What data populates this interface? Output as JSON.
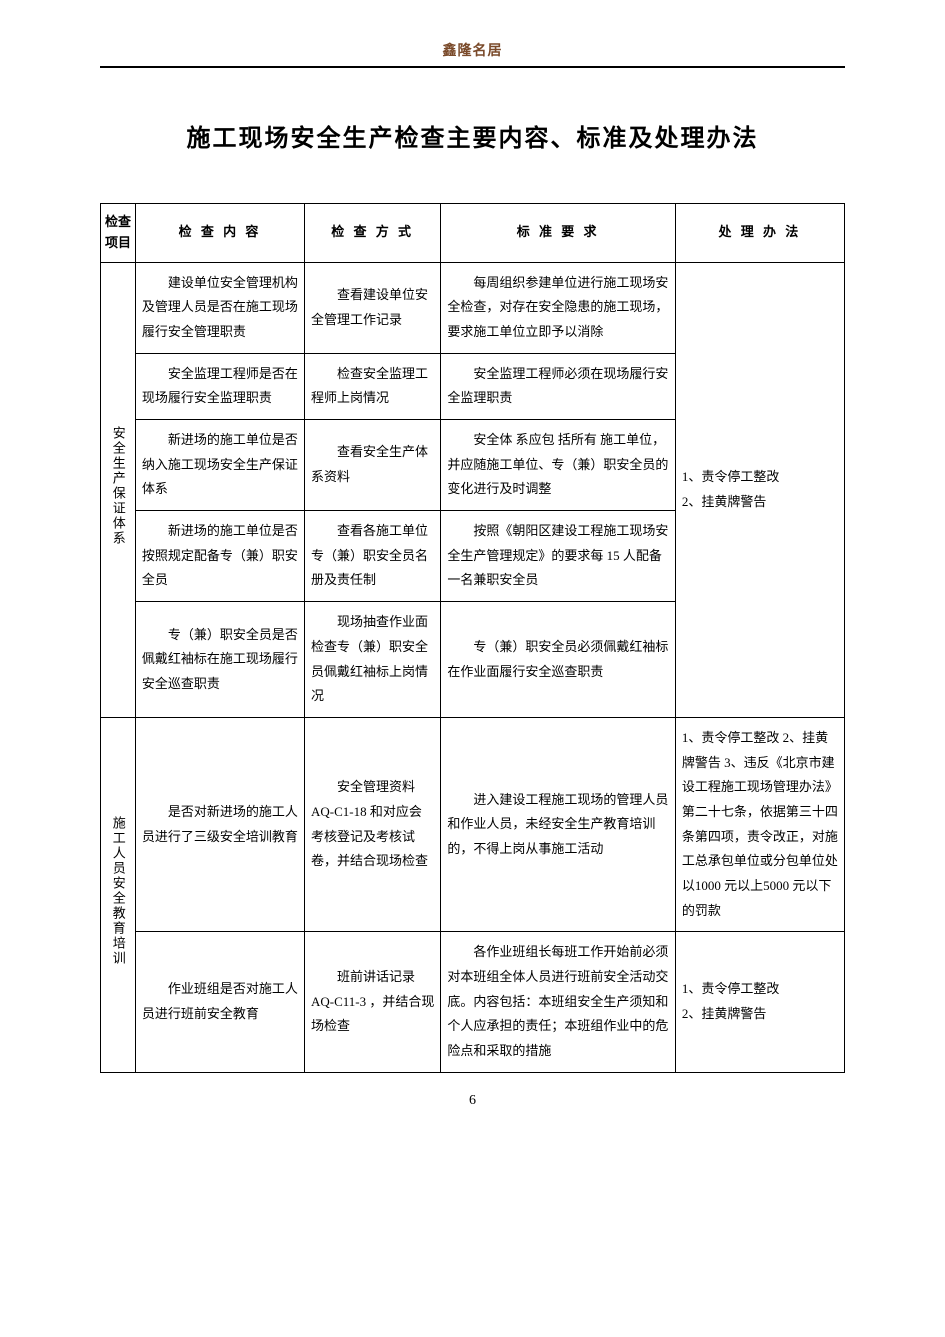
{
  "document": {
    "header_text": "鑫隆名居",
    "title": "施工现场安全生产检查主要内容、标准及处理办法",
    "page_number": "6",
    "text_color": "#000000",
    "header_color": "#7a4a2a",
    "background_color": "#ffffff",
    "border_color": "#000000",
    "font_family": "SimSun",
    "title_fontsize": 24,
    "body_fontsize": 13,
    "header_fontsize": 14
  },
  "table": {
    "headers": {
      "category": "检查项目",
      "content": "检 查 内 容",
      "method": "检 查 方 式",
      "standard": "标 准 要 求",
      "handling": "处 理 办 法"
    },
    "column_widths": {
      "category": 32,
      "content": 155,
      "method": 125,
      "standard": 215,
      "handling": 155
    },
    "sections": [
      {
        "category_label": "安全生产保证体系",
        "rowspan": 5,
        "handling": "1、责令停工整改\n2、挂黄牌警告",
        "handling_rowspan": 5,
        "rows": [
          {
            "content": "　　建设单位安全管理机构及管理人员是否在施工现场履行安全管理职责",
            "method": "　　查看建设单位安全管理工作记录",
            "standard": "　　每周组织参建单位进行施工现场安全检查，对存在安全隐患的施工现场，要求施工单位立即予以消除"
          },
          {
            "content": "　　安全监理工程师是否在现场履行安全监理职责",
            "method": "　　检查安全监理工程师上岗情况",
            "standard": "　　安全监理工程师必须在现场履行安全监理职责"
          },
          {
            "content": "　　新进场的施工单位是否纳入施工现场安全生产保证体系",
            "method": "　　查看安全生产体系资料",
            "standard": "　　安全体 系应包 括所有 施工单位，并应随施工单位、专（兼）职安全员的变化进行及时调整"
          },
          {
            "content": "　　新进场的施工单位是否按照规定配备专（兼）职安全员",
            "method": "　　查看各施工单位专（兼）职安全员名册及责任制",
            "standard": "　　按照《朝阳区建设工程施工现场安全生产管理规定》的要求每 15 人配备一名兼职安全员"
          },
          {
            "content": "　　专（兼）职安全员是否佩戴红袖标在施工现场履行安全巡查职责",
            "method": "　　现场抽查作业面检查专（兼）职安全员佩戴红袖标上岗情况",
            "standard": "　　专（兼）职安全员必须佩戴红袖标在作业面履行安全巡查职责"
          }
        ]
      },
      {
        "category_label": "施工人员安全教育培训",
        "rowspan": 2,
        "rows": [
          {
            "content": "　　是否对新进场的施工人员进行了三级安全培训教育",
            "method": "　　安全管理资料AQ-C1-18 和对应会考核登记及考核试卷，并结合现场检查",
            "standard": "　　进入建设工程施工现场的管理人员和作业人员，未经安全生产教育培训的，不得上岗从事施工活动",
            "handling": "1、责令停工整改\n2、挂黄牌警告\n3、违反《北京市建设工程施工现场管理办法》第二十七条，依据第三十四条第四项，责令改正，对施工总承包单位或分包单位处以1000 元以上5000 元以下的罚款"
          },
          {
            "content": "　　作业班组是否对施工人员进行班前安全教育",
            "method": "　　班前讲话记录 AQ-C11-3 ，并结合现场检查",
            "standard": "　　各作业班组长每班工作开始前必须对本班组全体人员进行班前安全活动交底。内容包括：本班组安全生产须知和个人应承担的责任；本班组作业中的危险点和采取的措施",
            "handling": "1、责令停工整改\n2、挂黄牌警告"
          }
        ]
      }
    ]
  }
}
